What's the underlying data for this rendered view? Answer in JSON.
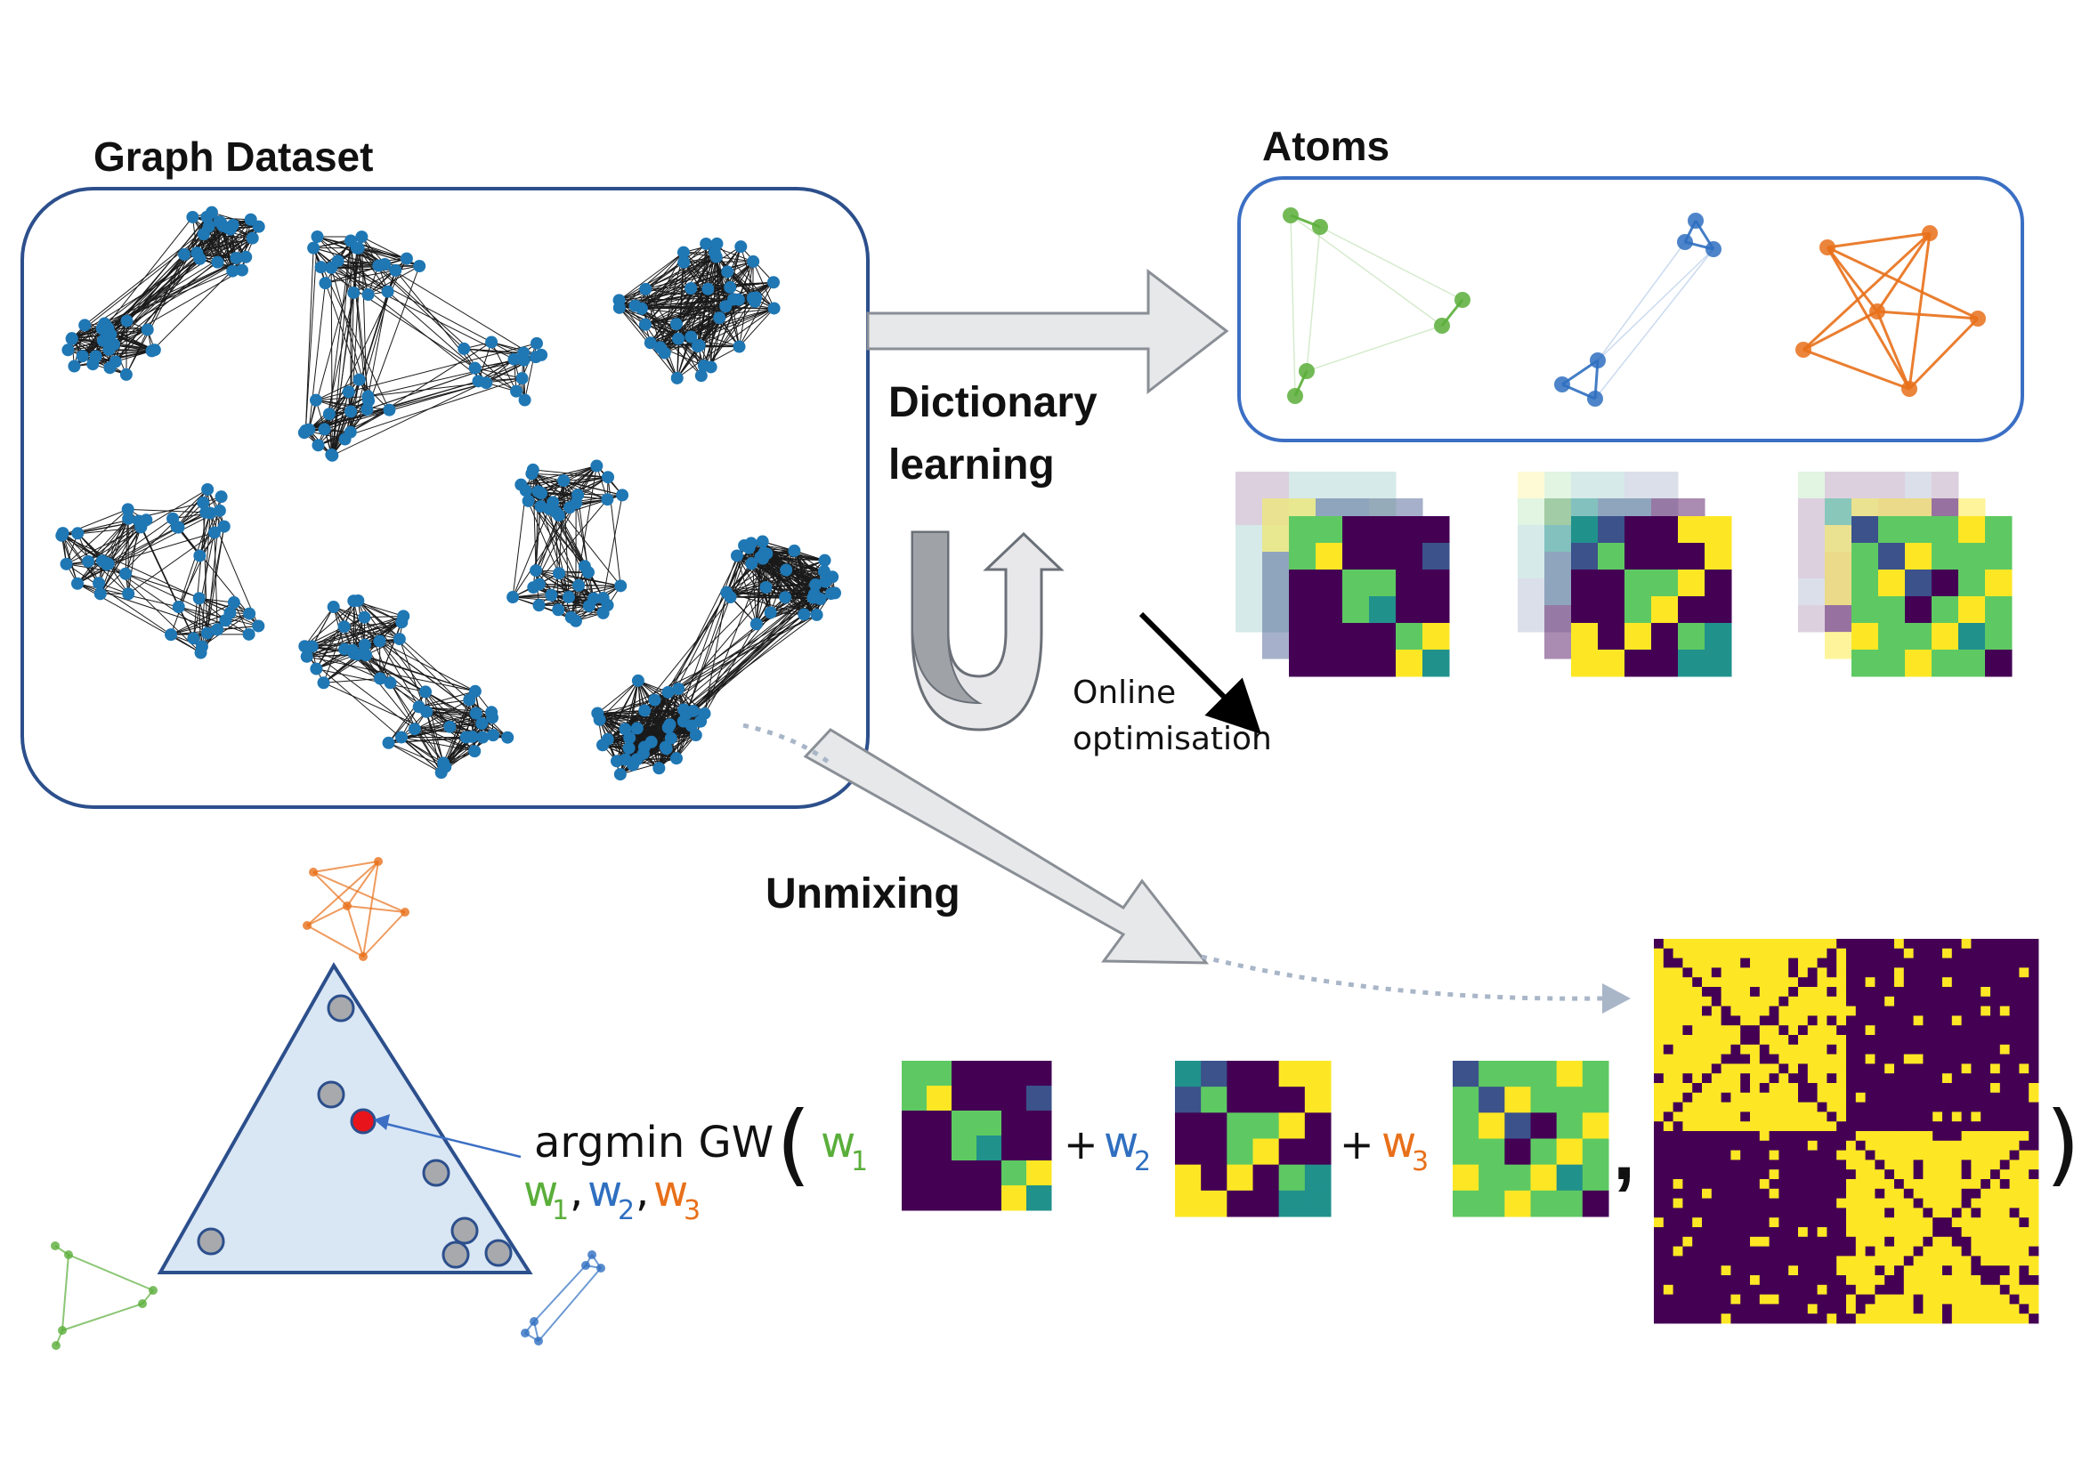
{
  "labels": {
    "graph_dataset": "Graph Dataset",
    "atoms": "Atoms",
    "dictionary": "Dictionary",
    "learning": "learning",
    "online": "Online",
    "optimisation": "optimisation",
    "unmixing": "Unmixing",
    "argmin": "argmin GW",
    "w": "w",
    "sub1": "1",
    "sub2": "2",
    "sub3": "3",
    "plus": "+",
    "comma": ",",
    "open_paren": "(",
    "close_paren": ")"
  },
  "colors": {
    "frame": "#2c4f8c",
    "atoms_frame": "#3b6fc4",
    "node": "#1f77b4",
    "green": "#5aae3a",
    "blue": "#2f6fc0",
    "orange": "#e8701a",
    "simplex_fill": "#d9e6f4",
    "arrow_fill": "#e7e8ea",
    "arrow_stroke": "#8a8f96"
  },
  "viridis": [
    "#440154",
    "#3b528b",
    "#21918c",
    "#5ec962",
    "#fde725"
  ],
  "atom_matrices": [
    [
      [
        3,
        3,
        0,
        0,
        0,
        0
      ],
      [
        3,
        4,
        0,
        0,
        0,
        1
      ],
      [
        0,
        0,
        3,
        3,
        0,
        0
      ],
      [
        0,
        0,
        3,
        2,
        0,
        0
      ],
      [
        0,
        0,
        0,
        0,
        3,
        4
      ],
      [
        0,
        0,
        0,
        0,
        4,
        2
      ]
    ],
    [
      [
        2,
        1,
        0,
        0,
        4,
        4
      ],
      [
        1,
        3,
        0,
        0,
        0,
        4
      ],
      [
        0,
        0,
        3,
        3,
        4,
        0
      ],
      [
        0,
        0,
        3,
        4,
        0,
        0
      ],
      [
        4,
        0,
        4,
        0,
        3,
        2
      ],
      [
        4,
        4,
        0,
        0,
        2,
        2
      ]
    ],
    [
      [
        1,
        3,
        3,
        3,
        4,
        3
      ],
      [
        3,
        1,
        4,
        3,
        3,
        3
      ],
      [
        3,
        4,
        1,
        0,
        3,
        4
      ],
      [
        3,
        3,
        0,
        3,
        4,
        3
      ],
      [
        4,
        3,
        3,
        4,
        2,
        3
      ],
      [
        3,
        3,
        4,
        3,
        3,
        0
      ]
    ]
  ]
}
